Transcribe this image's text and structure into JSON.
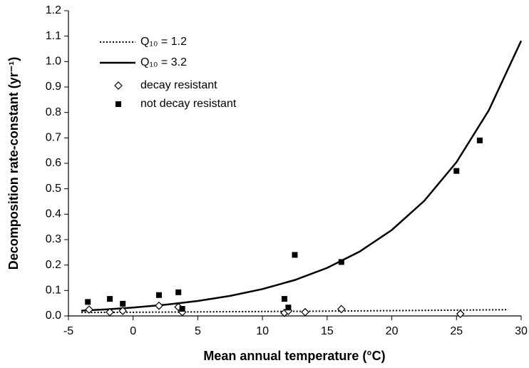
{
  "chart_data": {
    "type": "scatter",
    "x_label": "Mean annual temperature (°C)",
    "y_label": "Decomposition rate-constant (yr⁻¹)",
    "xlim": [
      -5,
      30
    ],
    "xticks": [
      -5,
      0,
      5,
      10,
      15,
      20,
      25,
      30
    ],
    "ylim": [
      0,
      1.2
    ],
    "yticks": [
      {
        "value": 0,
        "label": "0.0"
      },
      0.1,
      0.2,
      0.3,
      0.4,
      0.5,
      0.6,
      0.7,
      0.8,
      0.9,
      {
        "value": 1,
        "label": "1.0"
      },
      1.1,
      1.2
    ],
    "grid": false,
    "legend": "upper left",
    "series": [
      {
        "name": "Q₁₀ = 1.2",
        "color": "#000000",
        "style": "dotted",
        "x": [
          -4,
          0,
          5,
          10,
          15,
          20,
          25,
          29
        ],
        "values": [
          0.0135,
          0.0145,
          0.0159,
          0.0174,
          0.019,
          0.0208,
          0.0228,
          0.0245
        ]
      },
      {
        "name": "Q₁₀ = 3.2",
        "color": "#000000",
        "style": "solid",
        "x": [
          -4,
          -2,
          0,
          2.5,
          5,
          7.5,
          10,
          12.5,
          15,
          17.5,
          20,
          22.5,
          25,
          27.5,
          30
        ],
        "values": [
          0.0207,
          0.0261,
          0.033,
          0.0441,
          0.059,
          0.0789,
          0.1056,
          0.1412,
          0.1889,
          0.2526,
          0.3379,
          0.452,
          0.6045,
          0.8086,
          1.0815
        ]
      },
      {
        "name": "decay resistant",
        "color": "#000000",
        "style": "diamond",
        "x": [
          -3.4,
          -1.8,
          -0.8,
          2,
          3.5,
          3.8,
          11.7,
          12,
          13.3,
          16.1,
          25.3
        ],
        "values": [
          0.025,
          0.015,
          0.02,
          0.04,
          0.035,
          0.015,
          0.012,
          0.02,
          0.015,
          0.027,
          0.008
        ]
      },
      {
        "name": "not decay resistant",
        "color": "#000000",
        "style": "square",
        "x": [
          -3.5,
          -1.8,
          -0.8,
          2,
          3.5,
          3.8,
          11.7,
          12,
          12.5,
          16.1,
          25,
          26.8
        ],
        "values": [
          0.055,
          0.067,
          0.048,
          0.082,
          0.093,
          0.028,
          0.067,
          0.033,
          0.24,
          0.212,
          0.57,
          0.69
        ]
      }
    ]
  }
}
